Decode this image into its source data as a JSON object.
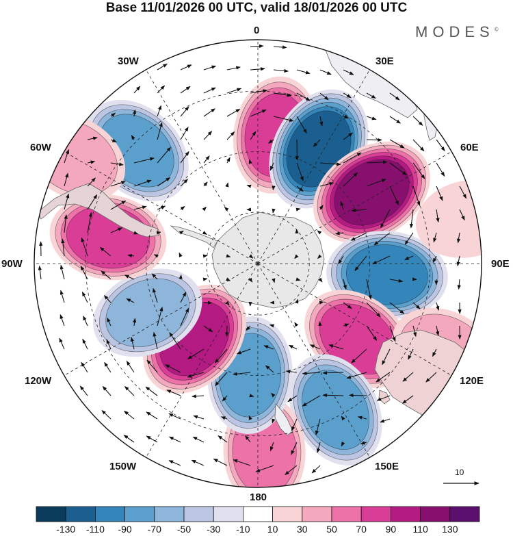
{
  "title": "Base 11/01/2026 00 UTC, valid 18/01/2026 00 UTC",
  "brand": {
    "name": "MODES",
    "mark": "©"
  },
  "longitude_labels": {
    "lon_0": "0",
    "lon_30e": "30E",
    "lon_60e": "60E",
    "lon_90e": "90E",
    "lon_120e": "120E",
    "lon_150e": "150E",
    "lon_180": "180",
    "lon_150w": "150W",
    "lon_120w": "120W",
    "lon_90w": "90W",
    "lon_60w": "60W",
    "lon_30w": "30W"
  },
  "reference_vector": {
    "label": "10"
  },
  "colorbar": {
    "labels": [
      "-130",
      "-110",
      "-90",
      "-70",
      "-50",
      "-30",
      "-10",
      "10",
      "30",
      "50",
      "70",
      "90",
      "110",
      "130"
    ],
    "colors": [
      "#0b3b5a",
      "#1a5f8f",
      "#3385ba",
      "#5b9fcd",
      "#8eb6db",
      "#bcc5e2",
      "#e0e0ee",
      "#ffffff",
      "#f9d4d6",
      "#f4a8bd",
      "#ec72a8",
      "#d93d96",
      "#b31a82",
      "#87106e",
      "#5b0f6d"
    ]
  },
  "anomalies": [
    {
      "lon": 8,
      "dist": 0.58,
      "value": 85
    },
    {
      "lon": 28,
      "dist": 0.58,
      "value": -110
    },
    {
      "lon": 58,
      "dist": 0.6,
      "value": 120
    },
    {
      "lon": 95,
      "dist": 0.58,
      "value": -100
    },
    {
      "lon": 127,
      "dist": 0.56,
      "value": 75
    },
    {
      "lon": 152,
      "dist": 0.74,
      "value": -85
    },
    {
      "lon": 178,
      "dist": 0.84,
      "value": 55
    },
    {
      "lon": 184,
      "dist": 0.5,
      "value": -75
    },
    {
      "lon": 220,
      "dist": 0.44,
      "value": 95
    },
    {
      "lon": 246,
      "dist": 0.54,
      "value": -50
    },
    {
      "lon": 280,
      "dist": 0.68,
      "value": 70
    },
    {
      "lon": 313,
      "dist": 0.74,
      "value": -80
    },
    {
      "lon": 300,
      "dist": 0.95,
      "value": 30
    },
    {
      "lon": 115,
      "dist": 0.92,
      "value": 30
    },
    {
      "lon": 78,
      "dist": 0.96,
      "value": 20
    }
  ]
}
